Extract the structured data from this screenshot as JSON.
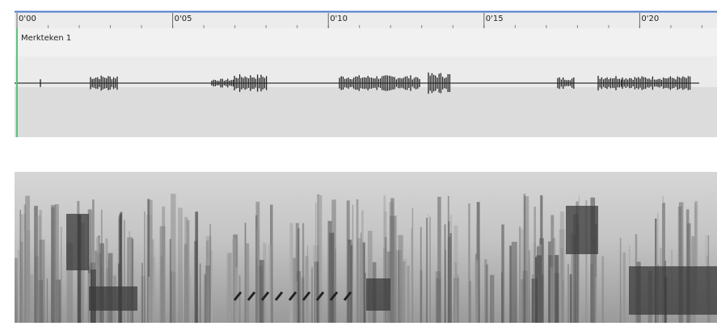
{
  "timeline": {
    "labels": [
      "0'00",
      "0'05",
      "0'10",
      "0'15",
      "0'20"
    ]
  },
  "marker": {
    "label": "Merkteken 1"
  }
}
